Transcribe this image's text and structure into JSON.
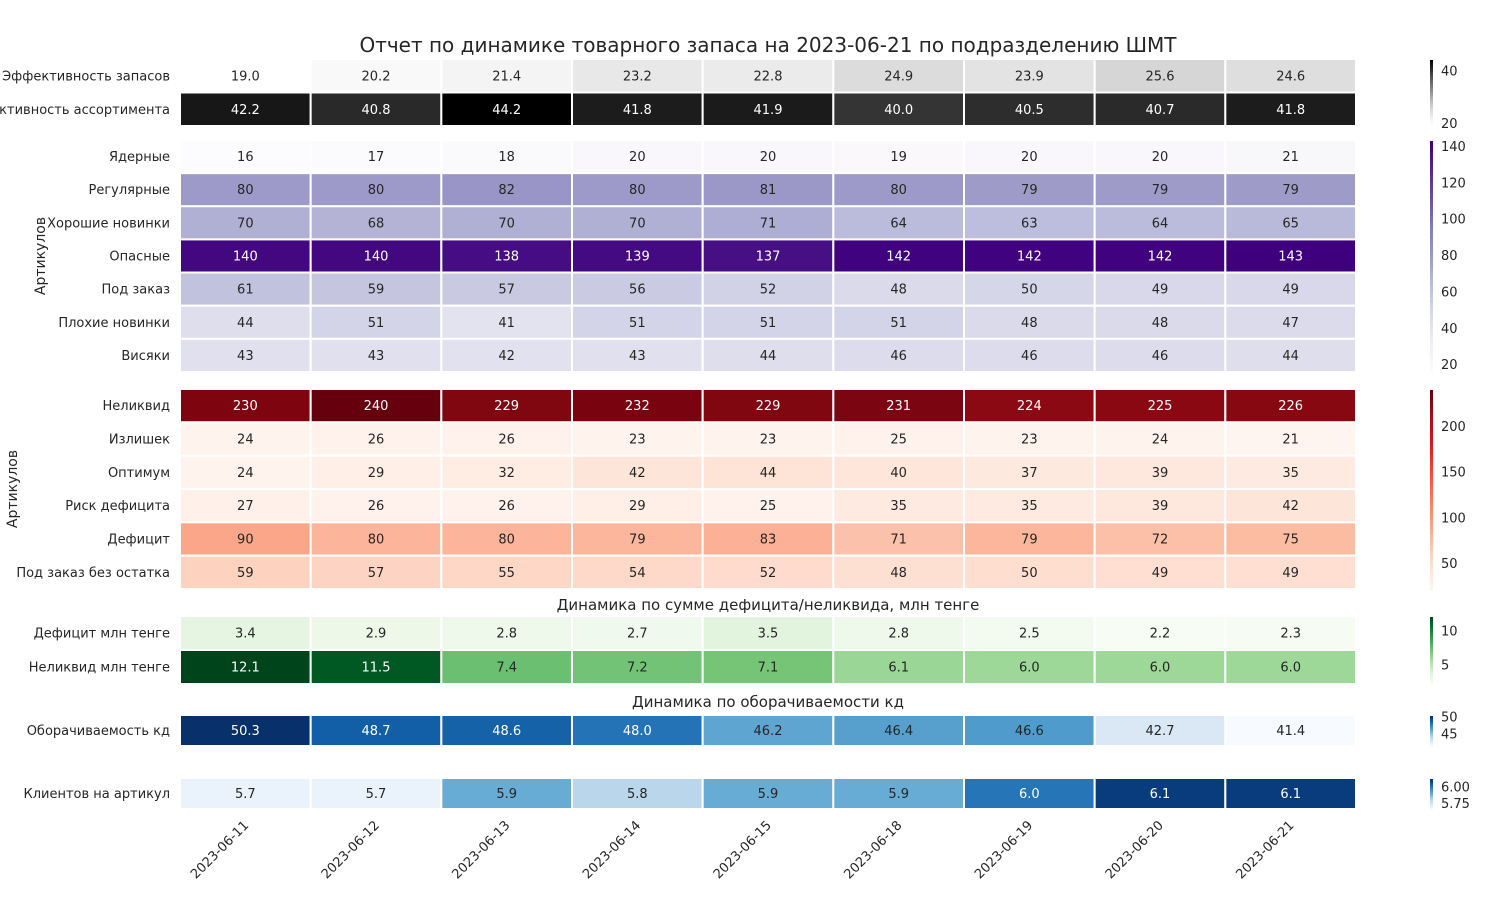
{
  "title": "Отчет по динамике товарного запаса на 2023-06-21 по подразделению ШМТ",
  "dates": [
    "2023-06-11",
    "2023-06-12",
    "2023-06-13",
    "2023-06-14",
    "2023-06-15",
    "2023-06-18",
    "2023-06-19",
    "2023-06-20",
    "2023-06-21"
  ],
  "chart_data": [
    {
      "type": "heatmap",
      "colormap": "Greys",
      "rows": [
        "Эффективность запасов",
        "ффективность ассортимента"
      ],
      "values": [
        [
          19.0,
          20.2,
          21.4,
          23.2,
          22.8,
          24.9,
          23.9,
          25.6,
          24.6
        ],
        [
          42.2,
          40.8,
          44.2,
          41.8,
          41.9,
          40.0,
          40.5,
          40.7,
          41.8
        ]
      ],
      "format": "1f",
      "vmin": 19.0,
      "vmax": 44.2,
      "colorbar_ticks": [
        20,
        40
      ],
      "ylabel": ""
    },
    {
      "type": "heatmap",
      "colormap": "Purples",
      "rows": [
        "Ядерные",
        "Регулярные",
        "Хорошие новинки",
        "Опасные",
        "Под заказ",
        "Плохие новинки",
        "Висяки"
      ],
      "values": [
        [
          16,
          17,
          18,
          20,
          20,
          19,
          20,
          20,
          21
        ],
        [
          80,
          80,
          82,
          80,
          81,
          80,
          79,
          79,
          79
        ],
        [
          70,
          68,
          70,
          70,
          71,
          64,
          63,
          64,
          65
        ],
        [
          140,
          140,
          138,
          139,
          137,
          142,
          142,
          142,
          143
        ],
        [
          61,
          59,
          57,
          56,
          52,
          48,
          50,
          49,
          49
        ],
        [
          44,
          51,
          41,
          51,
          51,
          51,
          48,
          48,
          47
        ],
        [
          43,
          43,
          42,
          43,
          44,
          46,
          46,
          46,
          44
        ]
      ],
      "format": "d",
      "vmin": 16,
      "vmax": 143,
      "colorbar_ticks": [
        20,
        40,
        60,
        80,
        100,
        120,
        140
      ],
      "ylabel": "Артикулов"
    },
    {
      "type": "heatmap",
      "colormap": "Reds",
      "rows": [
        "Неликвид",
        "Излишек",
        "Оптимум",
        "Риск дефицита",
        "Дефицит",
        "Под заказ без остатка"
      ],
      "values": [
        [
          230,
          240,
          229,
          232,
          229,
          231,
          224,
          225,
          226
        ],
        [
          24,
          26,
          26,
          23,
          23,
          25,
          23,
          24,
          21
        ],
        [
          24,
          29,
          32,
          42,
          44,
          40,
          37,
          39,
          35
        ],
        [
          27,
          26,
          26,
          29,
          25,
          35,
          35,
          39,
          42
        ],
        [
          90,
          80,
          80,
          79,
          83,
          71,
          79,
          72,
          75
        ],
        [
          59,
          57,
          55,
          54,
          52,
          48,
          50,
          49,
          49
        ]
      ],
      "format": "d",
      "vmin": 21,
      "vmax": 240,
      "colorbar_ticks": [
        50,
        100,
        150,
        200
      ],
      "ylabel": "Артикулов"
    },
    {
      "type": "heatmap",
      "colormap": "Greens",
      "subtitle": "Динамика по сумме дефицита/неликвида, млн тенге",
      "rows": [
        "Дефицит млн тенге",
        "Неликвид млн тенге"
      ],
      "values": [
        [
          3.4,
          2.9,
          2.8,
          2.7,
          3.5,
          2.8,
          2.5,
          2.2,
          2.3
        ],
        [
          12.1,
          11.5,
          7.4,
          7.2,
          7.1,
          6.1,
          6.0,
          6.0,
          6.0
        ]
      ],
      "format": "1f",
      "vmin": 2.2,
      "vmax": 12.1,
      "colorbar_ticks": [
        5,
        10
      ],
      "ylabel": ""
    },
    {
      "type": "heatmap",
      "colormap": "Blues",
      "subtitle": "Динамика по оборачиваемости кд",
      "rows": [
        "Оборачиваемость кд"
      ],
      "values": [
        [
          50.3,
          48.7,
          48.6,
          48.0,
          46.2,
          46.4,
          46.6,
          42.7,
          41.4
        ]
      ],
      "format": "1f",
      "vmin": 41.4,
      "vmax": 50.3,
      "colorbar_ticks": [
        45,
        50
      ],
      "ylabel": ""
    },
    {
      "type": "heatmap",
      "colormap": "Blues",
      "rows": [
        "Клиентов на артикул"
      ],
      "values": [
        [
          5.7,
          5.7,
          5.9,
          5.8,
          5.9,
          5.9,
          6.0,
          6.1,
          6.1
        ]
      ],
      "format": "1f",
      "vmin": 5.67,
      "vmax": 6.12,
      "colorbar_ticks": [
        5.75,
        6.0
      ],
      "colorbar_labels": [
        "5.75",
        "6.00"
      ],
      "ylabel": ""
    }
  ]
}
